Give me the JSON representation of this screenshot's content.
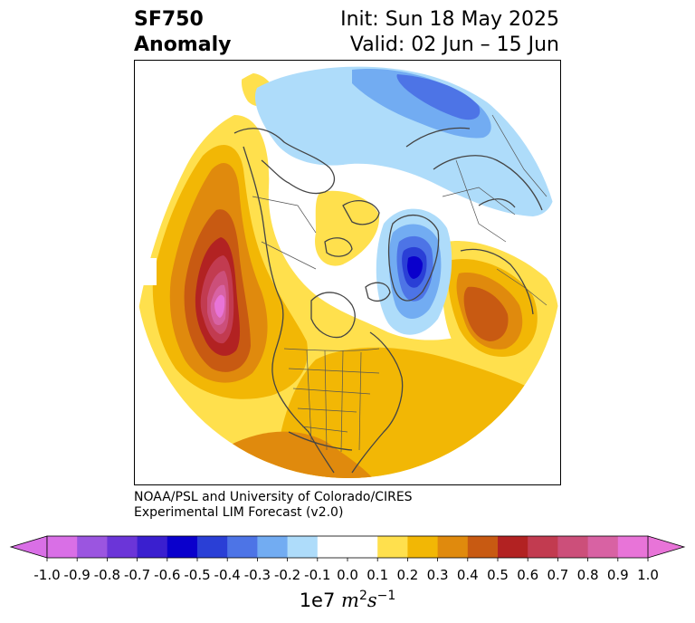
{
  "title": {
    "variable": "SF750",
    "kind": "Anomaly",
    "init": "Init: Sun 18 May 2025",
    "valid": "Valid: 02 Jun – 15 Jun"
  },
  "credit": {
    "line1": "NOAA/PSL and University of Colorado/CIRES",
    "line2": "Experimental LIM Forecast (v2.0)"
  },
  "colorbar": {
    "ticks": [
      "-1.0",
      "-0.9",
      "-0.8",
      "-0.7",
      "-0.6",
      "-0.5",
      "-0.4",
      "-0.3",
      "-0.2",
      "-0.1",
      "0.0",
      "0.1",
      "0.2",
      "0.3",
      "0.4",
      "0.5",
      "0.6",
      "0.7",
      "0.8",
      "0.9",
      "1.0"
    ],
    "colors": [
      "#d96fe6",
      "#9b55e0",
      "#6b35d8",
      "#3a1fcf",
      "#0a00cc",
      "#2a3fd6",
      "#4d74e6",
      "#72acf2",
      "#aedcfa",
      "#ffffff",
      "#ffffff",
      "#ffe04d",
      "#f2b705",
      "#e08a0d",
      "#c85a12",
      "#b22222",
      "#c23b50",
      "#cc4f7a",
      "#d862a3",
      "#e874d8"
    ],
    "under_color": "#d96fe6",
    "over_color": "#e874d8",
    "units_prefix": "1e7",
    "units_m": "m",
    "units_m_exp": "2",
    "units_s": "s",
    "units_s_exp": "−1"
  },
  "map": {
    "projection": "north-polar-stereographic",
    "features": [
      "coastlines",
      "country-borders",
      "us-state-borders"
    ]
  }
}
